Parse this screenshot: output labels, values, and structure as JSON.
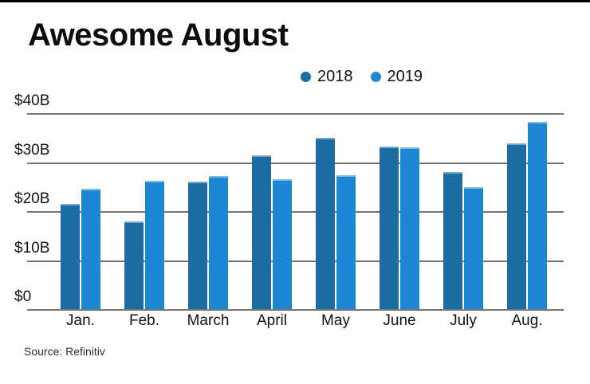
{
  "chart_data": {
    "type": "bar",
    "title": "Awesome August",
    "categories": [
      "Jan.",
      "Feb.",
      "March",
      "April",
      "May",
      "June",
      "July",
      "Aug."
    ],
    "series": [
      {
        "name": "2018",
        "color": "#1d6ba3",
        "values": [
          21.5,
          17.9,
          26.0,
          31.5,
          35.0,
          33.3,
          28.0,
          33.9
        ]
      },
      {
        "name": "2019",
        "color": "#1e87d3",
        "values": [
          24.6,
          26.2,
          27.2,
          26.5,
          27.3,
          33.1,
          25.0,
          38.3
        ]
      }
    ],
    "unit": "billions USD",
    "yticks": [
      0,
      10,
      20,
      30,
      40
    ],
    "ytick_labels": [
      "$0",
      "$10B",
      "$20B",
      "$30B",
      "$40B"
    ],
    "ylim": [
      0,
      40
    ],
    "grid": true,
    "gridline_color": "#757575",
    "legend_position": "top",
    "source": "Source: Refinitiv"
  }
}
